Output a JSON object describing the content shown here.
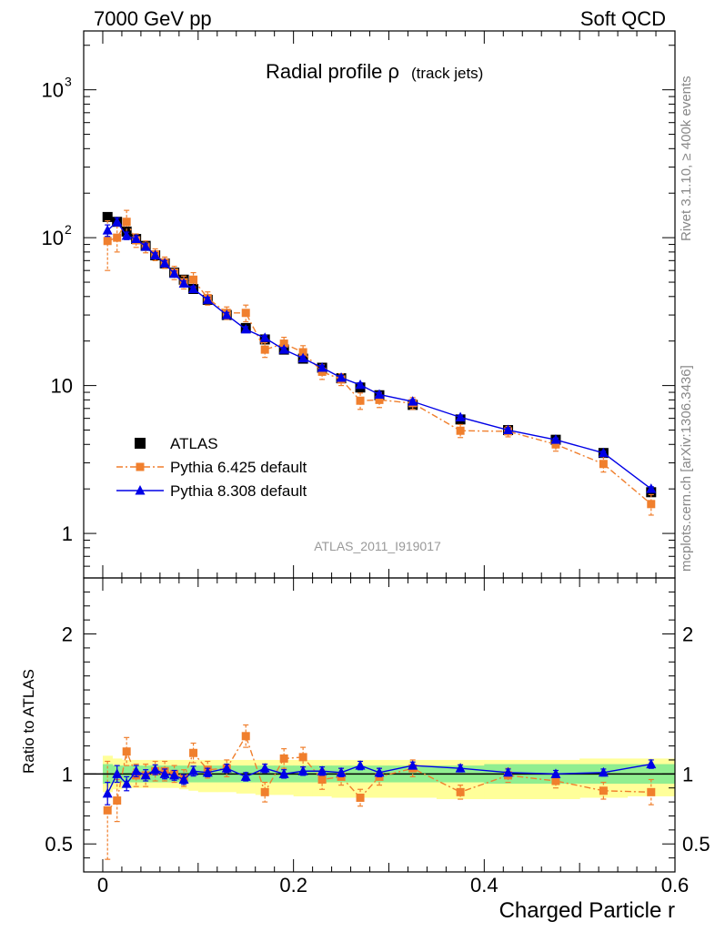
{
  "header": {
    "left": "7000 GeV pp",
    "right": "Soft QCD"
  },
  "side_labels": {
    "rivet": "Rivet 3.1.10, ≥ 400k events",
    "mcplots": "mcplots.cern.ch [arXiv:1306.3436]"
  },
  "chart_data": [
    {
      "type": "scatter",
      "title": "Radial profile ρ",
      "subtitle": "(track jets)",
      "analysis_label": "ATLAS_2011_I919017",
      "y_scale": "log",
      "ylim": [
        0.5,
        2500
      ],
      "xlim": [
        -0.02,
        0.6
      ],
      "y_ticks": [
        {
          "v": 1,
          "label": "1",
          "sup": ""
        },
        {
          "v": 10,
          "label": "10",
          "sup": ""
        },
        {
          "v": 100,
          "label": "10",
          "sup": "2"
        },
        {
          "v": 1000,
          "label": "10",
          "sup": "3"
        }
      ],
      "legend": {
        "placement": "left-middle",
        "entries": [
          "ATLAS",
          "Pythia 6.425 default",
          "Pythia 8.308 default"
        ]
      },
      "x": [
        0.005,
        0.015,
        0.025,
        0.035,
        0.045,
        0.055,
        0.065,
        0.075,
        0.085,
        0.095,
        0.11,
        0.13,
        0.15,
        0.17,
        0.19,
        0.21,
        0.23,
        0.25,
        0.27,
        0.29,
        0.325,
        0.375,
        0.425,
        0.475,
        0.525,
        0.575
      ],
      "series": [
        {
          "name": "ATLAS",
          "color": "#000000",
          "marker": "square",
          "values": [
            138,
            128,
            110,
            98,
            88,
            76,
            67,
            58,
            52,
            45,
            38,
            30,
            24.5,
            20.5,
            17.5,
            15.2,
            13.2,
            11.2,
            9.7,
            8.6,
            7.4,
            5.9,
            5.0,
            4.3,
            3.5,
            1.9
          ]
        },
        {
          "name": "Pythia 6.425 default",
          "color": "#f07f2d",
          "marker": "square",
          "style": "dashdot",
          "values": [
            95,
            100,
            128,
            96,
            87,
            77,
            68,
            58,
            50,
            52,
            39,
            31,
            31,
            17.5,
            19.2,
            16.8,
            12.4,
            11.0,
            7.9,
            8.0,
            7.6,
            4.95,
            4.9,
            4.0,
            2.95,
            1.58
          ],
          "err": [
            35,
            20,
            25,
            10,
            8,
            7,
            6,
            6,
            5,
            6,
            4,
            3,
            4,
            2,
            2,
            1.8,
            1.4,
            1.0,
            1.0,
            0.9,
            0.7,
            0.5,
            0.4,
            0.4,
            0.35,
            0.25
          ]
        },
        {
          "name": "Pythia 8.308 default",
          "color": "#0000e6",
          "marker": "triangle",
          "values": [
            112,
            128,
            103,
            98,
            87,
            76,
            67,
            57,
            49,
            45,
            38,
            30,
            24,
            21,
            17.5,
            15.3,
            13.2,
            11.3,
            10.1,
            8.7,
            7.8,
            6.1,
            5.0,
            4.3,
            3.5,
            2.0
          ],
          "err": [
            10,
            8,
            6,
            5,
            4,
            3,
            3,
            2.5,
            2,
            2,
            1.5,
            1.2,
            1,
            0.8,
            0.6,
            0.5,
            0.5,
            0.4,
            0.35,
            0.3,
            0.25,
            0.2,
            0.15,
            0.12,
            0.1,
            0.07
          ]
        }
      ]
    },
    {
      "type": "scatter",
      "ylabel": "Ratio to ATLAS",
      "xlabel": "Charged Particle r",
      "ylim": [
        0.3,
        2.4
      ],
      "xlim": [
        -0.02,
        0.6
      ],
      "y_ticks": [
        0.5,
        1,
        2
      ],
      "y_tick_labels": [
        "0.5",
        "1",
        "2"
      ],
      "x_ticks": [
        0,
        0.2,
        0.4,
        0.6
      ],
      "x_tick_labels": [
        "0",
        "0.2",
        "0.4",
        "0.6"
      ],
      "bands": {
        "x_edges": [
          0.0,
          0.01,
          0.02,
          0.03,
          0.04,
          0.05,
          0.06,
          0.07,
          0.08,
          0.09,
          0.1,
          0.12,
          0.14,
          0.16,
          0.18,
          0.2,
          0.22,
          0.24,
          0.26,
          0.28,
          0.3,
          0.35,
          0.4,
          0.45,
          0.5,
          0.55,
          0.6
        ],
        "inner": [
          0.07,
          0.06,
          0.06,
          0.06,
          0.06,
          0.06,
          0.06,
          0.06,
          0.06,
          0.06,
          0.06,
          0.06,
          0.06,
          0.06,
          0.06,
          0.06,
          0.06,
          0.06,
          0.06,
          0.06,
          0.06,
          0.06,
          0.07,
          0.07,
          0.07,
          0.07
        ],
        "outer_up": [
          0.13,
          0.11,
          0.1,
          0.1,
          0.1,
          0.1,
          0.1,
          0.1,
          0.1,
          0.1,
          0.1,
          0.1,
          0.1,
          0.1,
          0.1,
          0.1,
          0.1,
          0.1,
          0.1,
          0.1,
          0.1,
          0.1,
          0.1,
          0.1,
          0.11,
          0.11
        ],
        "outer_down": [
          0.13,
          0.11,
          0.1,
          0.1,
          0.1,
          0.1,
          0.1,
          0.1,
          0.11,
          0.12,
          0.13,
          0.13,
          0.14,
          0.15,
          0.15,
          0.16,
          0.16,
          0.17,
          0.17,
          0.17,
          0.17,
          0.18,
          0.18,
          0.18,
          0.17,
          0.16
        ],
        "inner_color": "#90ee90",
        "outer_color": "#ffff99"
      },
      "x": [
        0.005,
        0.015,
        0.025,
        0.035,
        0.045,
        0.055,
        0.065,
        0.075,
        0.085,
        0.095,
        0.11,
        0.13,
        0.15,
        0.17,
        0.19,
        0.21,
        0.23,
        0.25,
        0.27,
        0.29,
        0.325,
        0.375,
        0.425,
        0.475,
        0.525,
        0.575
      ],
      "series": [
        {
          "name": "Pythia 6.425 default",
          "color": "#f07f2d",
          "marker": "square",
          "style": "dashdot",
          "values": [
            0.74,
            0.81,
            1.16,
            0.99,
            0.99,
            1.02,
            1.02,
            1.0,
            0.97,
            1.15,
            1.03,
            1.04,
            1.27,
            0.87,
            1.11,
            1.12,
            0.96,
            0.98,
            0.83,
            0.98,
            1.04,
            0.87,
            0.99,
            0.95,
            0.88,
            0.87
          ],
          "err": [
            0.35,
            0.15,
            0.1,
            0.08,
            0.08,
            0.07,
            0.07,
            0.06,
            0.06,
            0.07,
            0.06,
            0.06,
            0.08,
            0.07,
            0.07,
            0.07,
            0.07,
            0.06,
            0.06,
            0.06,
            0.06,
            0.05,
            0.05,
            0.05,
            0.06,
            0.09
          ]
        },
        {
          "name": "Pythia 8.308 default",
          "color": "#0000e6",
          "marker": "triangle",
          "values": [
            0.86,
            1.0,
            0.93,
            1.02,
            0.99,
            1.03,
            1.0,
            0.99,
            0.96,
            1.02,
            1.01,
            1.04,
            0.98,
            1.04,
            1.0,
            1.02,
            1.02,
            1.01,
            1.06,
            1.01,
            1.06,
            1.04,
            1.01,
            1.0,
            1.01,
            1.07
          ],
          "err": [
            0.08,
            0.06,
            0.05,
            0.04,
            0.04,
            0.035,
            0.035,
            0.035,
            0.035,
            0.035,
            0.03,
            0.03,
            0.03,
            0.03,
            0.03,
            0.03,
            0.03,
            0.03,
            0.03,
            0.03,
            0.025,
            0.025,
            0.025,
            0.025,
            0.025,
            0.03
          ]
        }
      ]
    }
  ]
}
